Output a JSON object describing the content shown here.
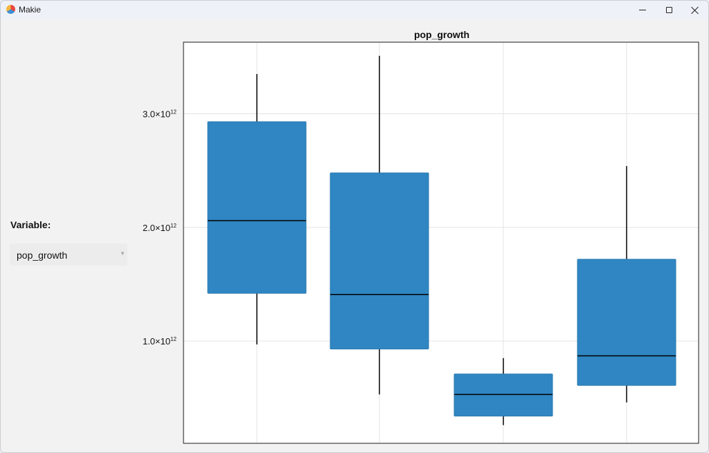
{
  "window": {
    "title": "Makie",
    "controls": {
      "minimize": "minimize",
      "maximize": "maximize",
      "close": "close"
    }
  },
  "sidebar": {
    "variable_label": "Variable:",
    "menu_value": "pop_growth",
    "menu_arrow": "▼"
  },
  "colors": {
    "box_fill": "#2f86c2",
    "median": "#000000",
    "whisker": "#000000",
    "grid": "#e3e3e3"
  },
  "chart_data": {
    "type": "box",
    "title": "pop_growth",
    "xlabel": "",
    "ylabel": "",
    "ylim": [
      100000000000.0,
      3630000000000.0
    ],
    "yticks": [
      1000000000000.0,
      2000000000000.0,
      3000000000000.0
    ],
    "ytick_labels": [
      {
        "mantissa": "1.0×10",
        "exp": "12"
      },
      {
        "mantissa": "2.0×10",
        "exp": "12"
      },
      {
        "mantissa": "3.0×10",
        "exp": "12"
      }
    ],
    "grid": true,
    "boxes": [
      {
        "whisker_low": 970000000000.0,
        "q1": 1420000000000.0,
        "median": 2060000000000.0,
        "q3": 2930000000000.0,
        "whisker_high": 3350000000000.0
      },
      {
        "whisker_low": 530000000000.0,
        "q1": 930000000000.0,
        "median": 1410000000000.0,
        "q3": 2480000000000.0,
        "whisker_high": 3510000000000.0
      },
      {
        "whisker_low": 260000000000.0,
        "q1": 340000000000.0,
        "median": 530000000000.0,
        "q3": 710000000000.0,
        "whisker_high": 850000000000.0
      },
      {
        "whisker_low": 460000000000.0,
        "q1": 610000000000.0,
        "median": 870000000000.0,
        "q3": 1720000000000.0,
        "whisker_high": 2540000000000.0
      }
    ]
  }
}
